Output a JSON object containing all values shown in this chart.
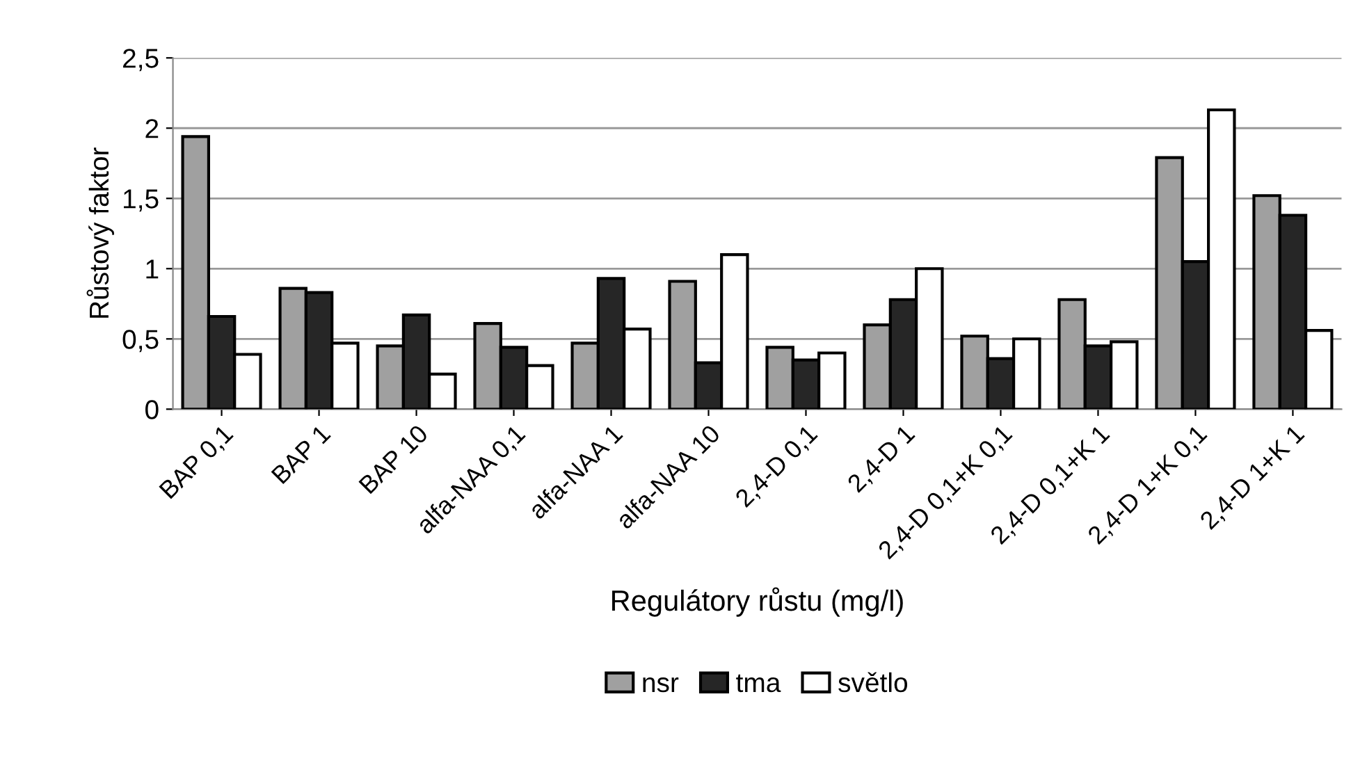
{
  "chart_data": {
    "type": "bar",
    "xlabel": "Regulátory růstu (mg/l)",
    "ylabel": "Růstový faktor",
    "categories": [
      "BAP 0,1",
      "BAP 1",
      "BAP 10",
      "alfa-NAA 0,1",
      "alfa-NAA 1",
      "alfa-NAA 10",
      "2,4-D 0,1",
      "2,4-D 1",
      "2,4-D 0,1+K 0,1",
      "2,4-D 0,1+K 1",
      "2,4-D 1+K 0,1",
      "2,4-D 1+K 1"
    ],
    "series": [
      {
        "name": "nsr",
        "color": "#a0a0a0",
        "values": [
          1.94,
          0.86,
          0.45,
          0.61,
          0.47,
          0.91,
          0.44,
          0.6,
          0.52,
          0.78,
          1.79,
          1.52
        ]
      },
      {
        "name": "tma",
        "color": "#262626",
        "values": [
          0.66,
          0.83,
          0.67,
          0.44,
          0.93,
          0.33,
          0.35,
          0.78,
          0.36,
          0.45,
          1.05,
          1.38
        ]
      },
      {
        "name": "světlo",
        "color": "#ffffff",
        "values": [
          0.39,
          0.47,
          0.25,
          0.31,
          0.57,
          1.1,
          0.4,
          1.0,
          0.5,
          0.48,
          2.13,
          0.56
        ]
      }
    ],
    "ylim": [
      0,
      2.5
    ],
    "yticks": [
      0,
      {
        "value": 0.5,
        "label": "0,5"
      },
      1,
      {
        "value": 1.5,
        "label": "1,5"
      },
      2,
      {
        "value": 2.5,
        "label": "2,5"
      }
    ],
    "grid": "y",
    "legend": "bottom"
  }
}
